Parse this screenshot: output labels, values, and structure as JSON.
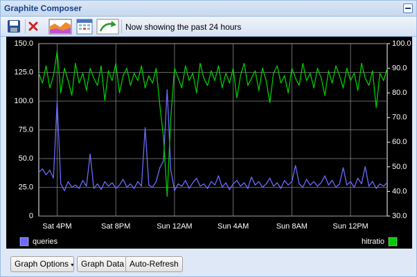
{
  "window": {
    "title": "Graphite Composer"
  },
  "toolbar": {
    "status": "Now showing the past 24 hours"
  },
  "buttons": [
    "Graph Options",
    "Graph Data",
    "Auto-Refresh"
  ],
  "chart_data": {
    "type": "line",
    "categories": [
      null,
      null,
      null,
      null,
      null,
      "Sat 4PM",
      null,
      null,
      null,
      null,
      null,
      null,
      null,
      null,
      null,
      null,
      null,
      null,
      null,
      null,
      null,
      "Sat 8PM",
      null,
      null,
      null,
      null,
      null,
      null,
      null,
      null,
      null,
      null,
      null,
      null,
      null,
      null,
      null,
      "Sun 12AM",
      null,
      null,
      null,
      null,
      null,
      null,
      null,
      null,
      null,
      null,
      null,
      null,
      null,
      null,
      null,
      "Sun 4AM",
      null,
      null,
      null,
      null,
      null,
      null,
      null,
      null,
      null,
      null,
      null,
      null,
      null,
      null,
      null,
      "Sun 8AM",
      null,
      null,
      null,
      null,
      null,
      null,
      null,
      null,
      null,
      null,
      null,
      null,
      null,
      null,
      null,
      "Sun 12PM",
      null,
      null,
      null,
      null,
      null,
      null,
      null,
      null,
      null,
      null
    ],
    "series": [
      {
        "name": "queries",
        "color": "#6b6bff",
        "axis": "y",
        "values": [
          38,
          41,
          36,
          40,
          33,
          100,
          28,
          22,
          30,
          25,
          27,
          24,
          31,
          26,
          54,
          24,
          28,
          23,
          30,
          26,
          29,
          24,
          27,
          32,
          25,
          28,
          24,
          30,
          26,
          77,
          27,
          25,
          30,
          42,
          48,
          110,
          40,
          22,
          28,
          26,
          31,
          24,
          29,
          33,
          26,
          28,
          24,
          30,
          27,
          35,
          25,
          29,
          23,
          28,
          31,
          26,
          29,
          24,
          34,
          27,
          30,
          25,
          28,
          33,
          26,
          29,
          24,
          31,
          27,
          30,
          44,
          28,
          25,
          32,
          27,
          30,
          26,
          29,
          35,
          27,
          31,
          25,
          28,
          42,
          27,
          30,
          25,
          33,
          28,
          43,
          26,
          30,
          24,
          28,
          26,
          29
        ]
      },
      {
        "name": "hitratio",
        "color": "#00cc00",
        "axis": "y2",
        "values": [
          88,
          84,
          91,
          82,
          87,
          97,
          80,
          90,
          85,
          79,
          92,
          84,
          88,
          81,
          90,
          86,
          83,
          91,
          77,
          89,
          85,
          92,
          80,
          87,
          90,
          83,
          88,
          85,
          91,
          82,
          87,
          84,
          90,
          75,
          62,
          38,
          70,
          90,
          86,
          82,
          91,
          85,
          88,
          80,
          92,
          86,
          83,
          89,
          85,
          91,
          82,
          88,
          84,
          90,
          78,
          87,
          92,
          83,
          86,
          89,
          81,
          90,
          85,
          76,
          88,
          91,
          84,
          87,
          80,
          90,
          86,
          83,
          92,
          85,
          88,
          82,
          90,
          86,
          79,
          89,
          84,
          91,
          87,
          82,
          90,
          85,
          88,
          81,
          92,
          86,
          83,
          89,
          74,
          88,
          85,
          90
        ]
      }
    ],
    "ylim": [
      0,
      150
    ],
    "yticks": [
      0,
      {
        "value": 25,
        "label": "25.0"
      },
      {
        "value": 50,
        "label": "50.0"
      },
      {
        "value": 75,
        "label": "75.0"
      },
      {
        "value": 100,
        "label": "100.0"
      },
      {
        "value": 125,
        "label": "125.0"
      },
      {
        "value": 150,
        "label": "150.0"
      }
    ],
    "y2lim": [
      30,
      100
    ],
    "y2ticks": [
      {
        "value": 30,
        "label": "30.0"
      },
      {
        "value": 40,
        "label": "40.0"
      },
      {
        "value": 50,
        "label": "50.0"
      },
      {
        "value": 60,
        "label": "60.0"
      },
      {
        "value": 70,
        "label": "70.0"
      },
      {
        "value": 80,
        "label": "80.0"
      },
      {
        "value": 90,
        "label": "90.0"
      },
      {
        "value": 100,
        "label": "100.0"
      }
    ],
    "grid": true
  }
}
